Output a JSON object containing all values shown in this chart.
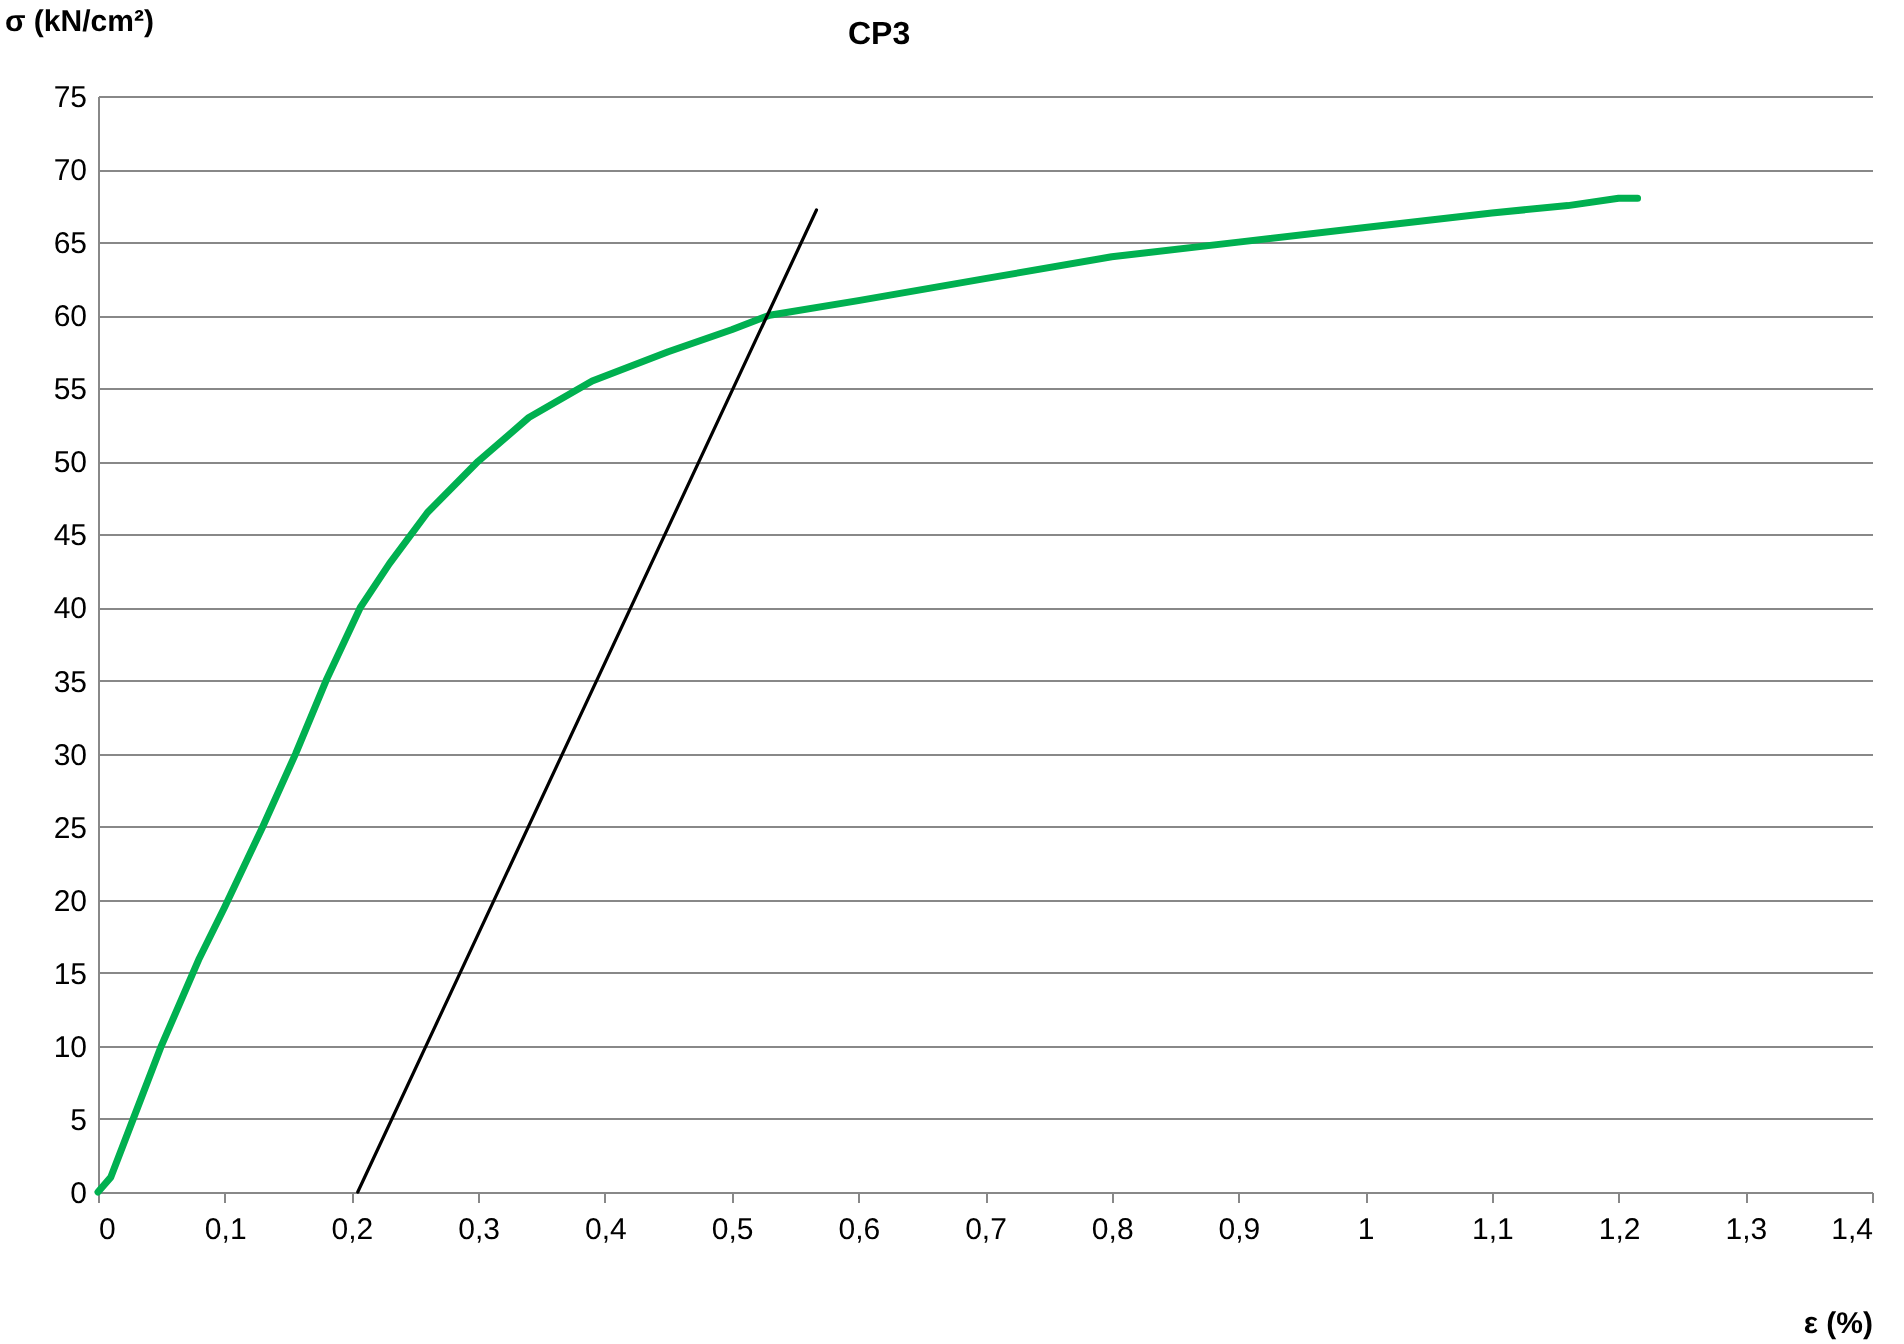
{
  "chart_data": {
    "type": "line",
    "title": "CP3",
    "xlabel": "ε (%)",
    "ylabel": "σ (kN/cm²)",
    "series": [
      {
        "color": "#00b050",
        "x": [
          0,
          0.01,
          0.03,
          0.05,
          0.08,
          0.1,
          0.13,
          0.156,
          0.18,
          0.207,
          0.23,
          0.26,
          0.3,
          0.34,
          0.39,
          0.45,
          0.5,
          0.53,
          0.6,
          0.7,
          0.8,
          0.9,
          1.0,
          1.1,
          1.16,
          1.2,
          1.215
        ],
        "values": [
          0,
          1,
          5.5,
          10,
          16,
          19.5,
          25,
          30,
          35,
          40,
          43,
          46.5,
          50,
          53,
          55.5,
          57.5,
          59,
          60,
          61,
          62.5,
          64,
          65,
          66,
          67,
          67.5,
          68,
          68
        ]
      },
      {
        "color": "#000000",
        "x": [
          0.205,
          0.567
        ],
        "values": [
          0,
          67.2
        ]
      }
    ],
    "xlim": [
      0,
      1.4
    ],
    "xticks": [
      0,
      {
        "value": 0.1,
        "label": "0,1"
      },
      {
        "value": 0.2,
        "label": "0,2"
      },
      {
        "value": 0.3,
        "label": "0,3"
      },
      {
        "value": 0.4,
        "label": "0,4"
      },
      {
        "value": 0.5,
        "label": "0,5"
      },
      {
        "value": 0.6,
        "label": "0,6"
      },
      {
        "value": 0.7,
        "label": "0,7"
      },
      {
        "value": 0.8,
        "label": "0,8"
      },
      {
        "value": 0.9,
        "label": "0,9"
      },
      1,
      {
        "value": 1.1,
        "label": "1,1"
      },
      {
        "value": 1.2,
        "label": "1,2"
      },
      {
        "value": 1.3,
        "label": "1,3"
      },
      {
        "value": 1.4,
        "label": "1,4"
      }
    ],
    "ylim": [
      0,
      75
    ],
    "yticks": [
      0,
      5,
      10,
      15,
      20,
      25,
      30,
      35,
      40,
      45,
      50,
      55,
      60,
      65,
      70,
      75
    ],
    "grid": "y",
    "marker": "none",
    "line_style": "solid"
  }
}
